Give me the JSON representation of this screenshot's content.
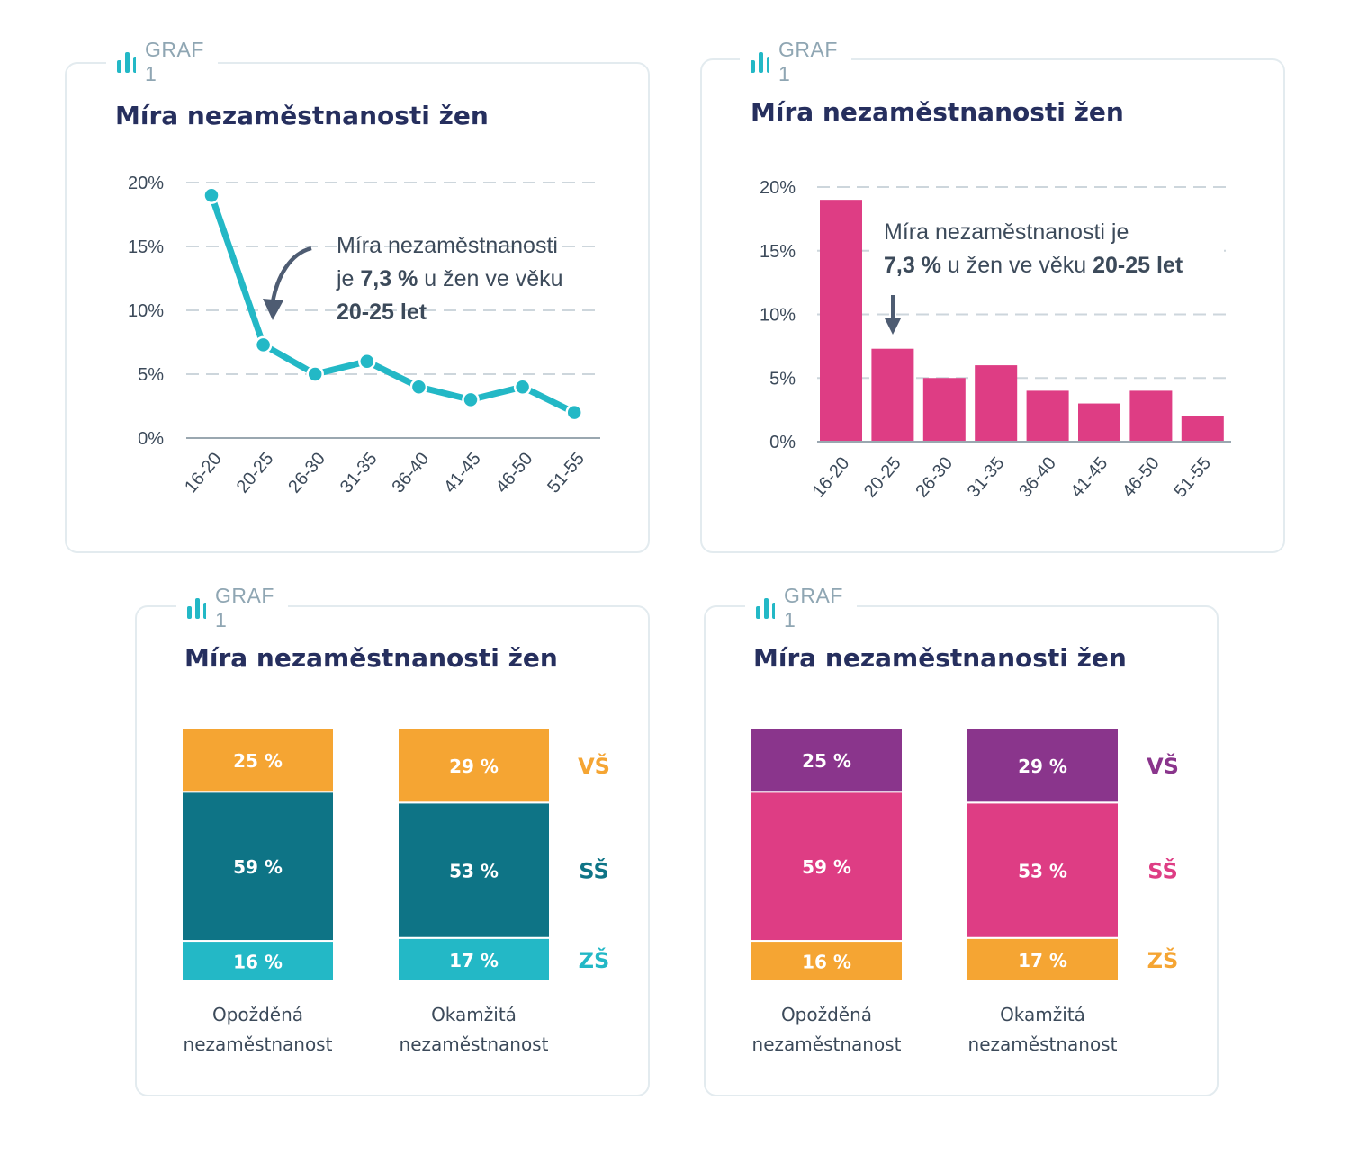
{
  "caption": "GRAF 1",
  "title": "Míra nezaměstnanosti žen",
  "colors": {
    "teal": "#23b8c6",
    "pink": "#de3d84",
    "orange": "#f5a533",
    "dark_teal": "#0e7486",
    "purple": "#8a358c",
    "axis_text": "#3c4a5a",
    "title": "#262f5e",
    "caption": "#8fa6b3"
  },
  "chart_data": [
    {
      "type": "line",
      "color": "#23b8c6",
      "categories": [
        "16-20",
        "20-25",
        "26-30",
        "31-35",
        "36-40",
        "41-45",
        "46-50",
        "51-55"
      ],
      "values": [
        19,
        7.3,
        5,
        6,
        4,
        3,
        4,
        2
      ],
      "ylim": [
        0,
        20
      ],
      "yticks": [
        "0%",
        "5%",
        "10%",
        "15%",
        "20%"
      ],
      "grid": true,
      "annotation": {
        "line1": "Míra nezaměstnanosti",
        "line2_pre": "je ",
        "line2_bold": "7,3 %",
        "line2_post": " u žen ve věku",
        "line3_bold": "20-25 let"
      }
    },
    {
      "type": "bar",
      "color": "#de3d84",
      "categories": [
        "16-20",
        "20-25",
        "26-30",
        "31-35",
        "36-40",
        "41-45",
        "46-50",
        "51-55"
      ],
      "values": [
        19,
        7.3,
        5,
        6,
        4,
        3,
        4,
        2
      ],
      "ylim": [
        0,
        20
      ],
      "yticks": [
        "0%",
        "5%",
        "10%",
        "15%",
        "20%"
      ],
      "grid": true,
      "annotation": {
        "line1": "Míra nezaměstnanosti je",
        "line2_bold": "7,3 %",
        "line2_mid": " u žen ve věku ",
        "line2_bold2": "20-25 let"
      }
    },
    {
      "type": "bar",
      "stacked": true,
      "categories": [
        "Opožděná nezaměstnanost",
        "Okamžitá nezaměstnanost"
      ],
      "category_lines": [
        [
          "Opožděná",
          "nezaměstnanost"
        ],
        [
          "Okamžitá",
          "nezaměstnanost"
        ]
      ],
      "series": [
        {
          "name": "ZŠ",
          "values": [
            16,
            17
          ],
          "labels": [
            "16 %",
            "17 %"
          ],
          "color": "#23b8c6"
        },
        {
          "name": "SŠ",
          "values": [
            59,
            53
          ],
          "labels": [
            "59 %",
            "53 %"
          ],
          "color": "#0e7486"
        },
        {
          "name": "VŠ",
          "values": [
            25,
            29
          ],
          "labels": [
            "25 %",
            "29 %"
          ],
          "color": "#f5a533"
        }
      ]
    },
    {
      "type": "bar",
      "stacked": true,
      "categories": [
        "Opožděná nezaměstnanost",
        "Okamžitá nezaměstnanost"
      ],
      "category_lines": [
        [
          "Opožděná",
          "nezaměstnanost"
        ],
        [
          "Okamžitá",
          "nezaměstnanost"
        ]
      ],
      "series": [
        {
          "name": "ZŠ",
          "values": [
            16,
            17
          ],
          "labels": [
            "16 %",
            "17 %"
          ],
          "color": "#f5a533"
        },
        {
          "name": "SŠ",
          "values": [
            59,
            53
          ],
          "labels": [
            "59 %",
            "53 %"
          ],
          "color": "#de3d84"
        },
        {
          "name": "VŠ",
          "values": [
            25,
            29
          ],
          "labels": [
            "25 %",
            "29 %"
          ],
          "color": "#8a358c"
        }
      ]
    }
  ]
}
